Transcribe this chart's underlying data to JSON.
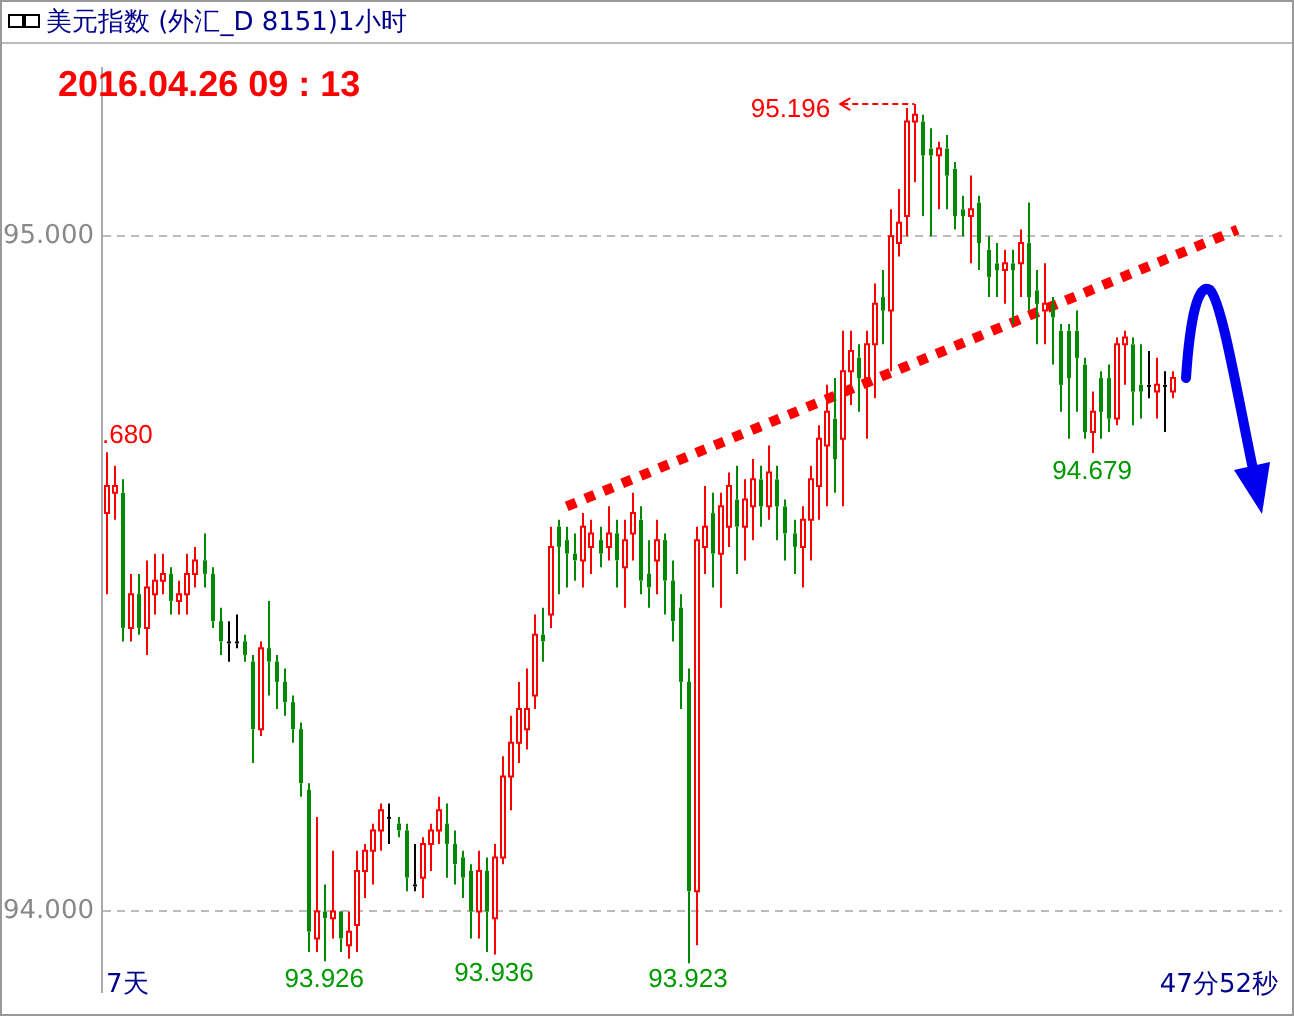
{
  "chart_data": {
    "type": "candlestick",
    "title": "美元指数 (外汇_D 8151)1小时",
    "subtitle": "2016.04.26 09 : 13",
    "categories": [
      null,
      null,
      null,
      null,
      null,
      null,
      null,
      null,
      null,
      null,
      null,
      null,
      null,
      null,
      null,
      null,
      null,
      null,
      null,
      null,
      null,
      null,
      null,
      null,
      null,
      null,
      null,
      null,
      null,
      null,
      null,
      null,
      null,
      null,
      null,
      null,
      null,
      null,
      null,
      null,
      null,
      null,
      null,
      null,
      null,
      null,
      null,
      null,
      null,
      null,
      null,
      null,
      null,
      null,
      null,
      null,
      null,
      null,
      null,
      null,
      null,
      null,
      null,
      null,
      null,
      null,
      null,
      null,
      null,
      null,
      null,
      null,
      null,
      null,
      null,
      null,
      null,
      null,
      null,
      null,
      null,
      null,
      null,
      null,
      null,
      null,
      null,
      null,
      null,
      null,
      null,
      null,
      null,
      null,
      null,
      null,
      null,
      null,
      null,
      null,
      null,
      null,
      null,
      null,
      null,
      null,
      null,
      null,
      null,
      null,
      null,
      null,
      null,
      null,
      null,
      null,
      null,
      null,
      null,
      null,
      null,
      null,
      null,
      null,
      null,
      null,
      null,
      null,
      null,
      null,
      null,
      null,
      null,
      null,
      null,
      null,
      null,
      null,
      null,
      null,
      null,
      null,
      null,
      null,
      null,
      null
    ],
    "ohlc": [
      [
        94.59,
        94.68,
        94.47,
        94.63
      ],
      [
        94.62,
        94.66,
        94.58,
        94.63
      ],
      [
        94.62,
        94.64,
        94.4,
        94.42
      ],
      [
        94.42,
        94.5,
        94.4,
        94.47
      ],
      [
        94.47,
        94.5,
        94.41,
        94.42
      ],
      [
        94.42,
        94.52,
        94.38,
        94.48
      ],
      [
        94.47,
        94.53,
        94.44,
        94.49
      ],
      [
        94.49,
        94.53,
        94.47,
        94.5
      ],
      [
        94.5,
        94.51,
        94.44,
        94.46
      ],
      [
        94.46,
        94.49,
        94.44,
        94.47
      ],
      [
        94.47,
        94.53,
        94.44,
        94.5
      ],
      [
        94.5,
        94.54,
        94.48,
        94.52
      ],
      [
        94.52,
        94.56,
        94.48,
        94.5
      ],
      [
        94.5,
        94.51,
        94.42,
        94.43
      ],
      [
        94.43,
        94.45,
        94.38,
        94.4
      ],
      [
        94.4,
        94.43,
        94.37,
        94.4
      ],
      [
        94.4,
        94.44,
        94.39,
        94.4
      ],
      [
        94.4,
        94.41,
        94.37,
        94.38
      ],
      [
        94.37,
        94.38,
        94.22,
        94.27
      ],
      [
        94.27,
        94.4,
        94.26,
        94.39
      ],
      [
        94.39,
        94.46,
        94.32,
        94.37
      ],
      [
        94.37,
        94.38,
        94.3,
        94.34
      ],
      [
        94.34,
        94.36,
        94.29,
        94.31
      ],
      [
        94.31,
        94.32,
        94.25,
        94.27
      ],
      [
        94.27,
        94.28,
        94.17,
        94.19
      ],
      [
        94.18,
        94.19,
        93.94,
        93.97
      ],
      [
        93.96,
        94.14,
        93.94,
        94.0
      ],
      [
        94.0,
        94.04,
        93.926,
        93.99
      ],
      [
        93.99,
        94.09,
        93.96,
        94.0
      ],
      [
        94.0,
        94.0,
        93.94,
        93.96
      ],
      [
        93.95,
        94.0,
        93.93,
        93.97
      ],
      [
        93.98,
        94.09,
        93.94,
        94.06
      ],
      [
        94.06,
        94.1,
        94.02,
        94.09
      ],
      [
        94.09,
        94.13,
        94.04,
        94.12
      ],
      [
        94.12,
        94.16,
        94.09,
        94.15
      ],
      [
        94.14,
        94.16,
        94.1,
        94.14
      ],
      [
        94.13,
        94.14,
        94.11,
        94.12
      ],
      [
        94.12,
        94.13,
        94.03,
        94.05
      ],
      [
        94.04,
        94.1,
        94.03,
        94.04
      ],
      [
        94.05,
        94.11,
        94.02,
        94.1
      ],
      [
        94.1,
        94.13,
        94.06,
        94.12
      ],
      [
        94.12,
        94.17,
        94.1,
        94.15
      ],
      [
        94.13,
        94.16,
        94.05,
        94.1
      ],
      [
        94.1,
        94.12,
        94.04,
        94.07
      ],
      [
        94.08,
        94.09,
        94.02,
        94.05
      ],
      [
        94.06,
        94.07,
        93.96,
        94.0
      ],
      [
        94.0,
        94.09,
        93.96,
        94.06
      ],
      [
        94.06,
        94.08,
        93.94,
        94.0
      ],
      [
        93.99,
        94.1,
        93.936,
        94.08
      ],
      [
        94.08,
        94.23,
        94.07,
        94.2
      ],
      [
        94.2,
        94.29,
        94.15,
        94.25
      ],
      [
        94.25,
        94.34,
        94.22,
        94.3
      ],
      [
        94.27,
        94.36,
        94.24,
        94.3
      ],
      [
        94.32,
        94.44,
        94.3,
        94.41
      ],
      [
        94.41,
        94.45,
        94.37,
        94.4
      ],
      [
        94.44,
        94.57,
        94.42,
        94.54
      ],
      [
        94.57,
        94.58,
        94.47,
        94.54
      ],
      [
        94.55,
        94.57,
        94.48,
        94.53
      ],
      [
        94.53,
        94.56,
        94.49,
        94.52
      ],
      [
        94.52,
        94.59,
        94.48,
        94.57
      ],
      [
        94.54,
        94.58,
        94.5,
        94.56
      ],
      [
        94.55,
        94.57,
        94.51,
        94.53
      ],
      [
        94.54,
        94.6,
        94.52,
        94.56
      ],
      [
        94.56,
        94.58,
        94.48,
        94.52
      ],
      [
        94.51,
        94.58,
        94.45,
        94.55
      ],
      [
        94.56,
        94.62,
        94.52,
        94.59
      ],
      [
        94.58,
        94.6,
        94.47,
        94.49
      ],
      [
        94.5,
        94.55,
        94.45,
        94.48
      ],
      [
        94.52,
        94.58,
        94.47,
        94.55
      ],
      [
        94.55,
        94.56,
        94.44,
        94.49
      ],
      [
        94.49,
        94.52,
        94.4,
        94.43
      ],
      [
        94.45,
        94.47,
        94.3,
        94.34
      ],
      [
        94.34,
        94.36,
        93.923,
        94.03
      ],
      [
        94.03,
        94.57,
        93.95,
        94.55
      ],
      [
        94.54,
        94.63,
        94.5,
        94.57
      ],
      [
        94.59,
        94.62,
        94.48,
        94.53
      ],
      [
        94.53,
        94.62,
        94.45,
        94.6
      ],
      [
        94.57,
        94.65,
        94.54,
        94.63
      ],
      [
        94.61,
        94.66,
        94.5,
        94.57
      ],
      [
        94.57,
        94.64,
        94.52,
        94.61
      ],
      [
        94.6,
        94.67,
        94.55,
        94.64
      ],
      [
        94.64,
        94.66,
        94.57,
        94.6
      ],
      [
        94.6,
        94.69,
        94.58,
        94.65
      ],
      [
        94.64,
        94.66,
        94.55,
        94.6
      ],
      [
        94.6,
        94.61,
        94.52,
        94.56
      ],
      [
        94.56,
        94.58,
        94.5,
        94.54
      ],
      [
        94.54,
        94.6,
        94.48,
        94.58
      ],
      [
        94.58,
        94.66,
        94.52,
        94.64
      ],
      [
        94.63,
        94.72,
        94.58,
        94.7
      ],
      [
        94.69,
        94.78,
        94.6,
        94.74
      ],
      [
        94.73,
        94.79,
        94.62,
        94.67
      ],
      [
        94.7,
        94.86,
        94.6,
        94.8
      ],
      [
        94.8,
        94.86,
        94.75,
        94.83
      ],
      [
        94.82,
        94.84,
        94.74,
        94.79
      ],
      [
        94.79,
        94.86,
        94.7,
        94.84
      ],
      [
        94.84,
        94.93,
        94.76,
        94.9
      ],
      [
        94.91,
        94.95,
        94.84,
        94.89
      ],
      [
        94.89,
        95.04,
        94.8,
        95.0
      ],
      [
        94.99,
        95.07,
        94.97,
        95.02
      ],
      [
        95.03,
        95.19,
        95.0,
        95.17
      ],
      [
        95.17,
        95.196,
        95.08,
        95.18
      ],
      [
        95.17,
        95.18,
        95.03,
        95.12
      ],
      [
        95.13,
        95.16,
        95.0,
        95.12
      ],
      [
        95.12,
        95.14,
        95.04,
        95.13
      ],
      [
        95.13,
        95.15,
        95.04,
        95.09
      ],
      [
        95.1,
        95.11,
        95.01,
        95.03
      ],
      [
        95.04,
        95.06,
        95.0,
        95.03
      ],
      [
        95.03,
        95.09,
        94.96,
        95.04
      ],
      [
        95.05,
        95.06,
        94.95,
        94.99
      ],
      [
        94.98,
        95.0,
        94.91,
        94.94
      ],
      [
        94.96,
        94.99,
        94.91,
        94.95
      ],
      [
        94.95,
        94.98,
        94.9,
        94.96
      ],
      [
        94.96,
        94.98,
        94.87,
        94.95
      ],
      [
        94.96,
        95.01,
        94.91,
        94.99
      ],
      [
        94.99,
        95.05,
        94.89,
        94.91
      ],
      [
        94.92,
        94.95,
        94.84,
        94.9
      ],
      [
        94.89,
        94.96,
        94.84,
        94.9
      ],
      [
        94.9,
        94.91,
        94.81,
        94.88
      ],
      [
        94.86,
        94.87,
        94.74,
        94.78
      ],
      [
        94.86,
        94.87,
        94.7,
        94.79
      ],
      [
        94.86,
        94.89,
        94.74,
        94.82
      ],
      [
        94.81,
        94.82,
        94.7,
        94.71
      ],
      [
        94.71,
        94.77,
        94.679,
        94.74
      ],
      [
        94.79,
        94.8,
        94.7,
        94.74
      ],
      [
        94.79,
        94.81,
        94.71,
        94.73
      ],
      [
        94.73,
        94.85,
        94.72,
        94.84
      ],
      [
        94.84,
        94.86,
        94.78,
        94.85
      ],
      [
        94.84,
        94.85,
        94.72,
        94.77
      ],
      [
        94.78,
        94.84,
        94.73,
        94.77
      ],
      [
        94.78,
        94.83,
        94.76,
        94.78
      ],
      [
        94.77,
        94.82,
        94.73,
        94.78
      ],
      [
        94.78,
        94.8,
        94.71,
        94.78
      ],
      [
        94.77,
        94.8,
        94.76,
        94.79
      ],
      null,
      null,
      null,
      null,
      null,
      null,
      null,
      null,
      null,
      null,
      null,
      null,
      null
    ],
    "series": [
      {
        "type": "line",
        "color": "#ff0000",
        "line_style": "dotted",
        "values": [
          null,
          null,
          null,
          null,
          null,
          null,
          null,
          null,
          null,
          null,
          null,
          null,
          null,
          null,
          null,
          null,
          null,
          null,
          null,
          null,
          null,
          null,
          null,
          null,
          null,
          null,
          null,
          null,
          null,
          null,
          null,
          null,
          null,
          null,
          null,
          null,
          null,
          null,
          null,
          null,
          null,
          null,
          null,
          null,
          null,
          null,
          null,
          null,
          null,
          null,
          null,
          null,
          null,
          null,
          null,
          null,
          null,
          94.6,
          null,
          null,
          null,
          null,
          null,
          null,
          null,
          null,
          null,
          null,
          null,
          null,
          null,
          null,
          null,
          null,
          null,
          null,
          null,
          null,
          null,
          null,
          null,
          null,
          null,
          null,
          null,
          null,
          null,
          null,
          null,
          null,
          null,
          null,
          null,
          null,
          null,
          null,
          null,
          null,
          null,
          null,
          null,
          null,
          null,
          null,
          null,
          null,
          null,
          null,
          null,
          null,
          null,
          null,
          null,
          null,
          null,
          null,
          null,
          null,
          null,
          null,
          null,
          null,
          null,
          null,
          null,
          null,
          null,
          null,
          null,
          null,
          null,
          null,
          null,
          null,
          null,
          null,
          null,
          null,
          null,
          null,
          95.01,
          null,
          null,
          null,
          null,
          null
        ]
      }
    ],
    "ylim": [
      93.88,
      95.25
    ],
    "yticks": [
      {
        "value": 94,
        "label": "94.000"
      },
      {
        "value": 95,
        "label": "95.000"
      }
    ],
    "grid": "y",
    "tick_labels": "y",
    "legend": false,
    "annotations": [
      ".680",
      "95.196",
      {
        "text": "94.679",
        "y": 94.679
      },
      {
        "text": "93.926",
        "y": 93.926
      },
      {
        "text": "93.936",
        "y": 93.936
      },
      {
        "text": "93.923",
        "y": 93.923
      },
      "7天",
      "47分52秒"
    ]
  }
}
